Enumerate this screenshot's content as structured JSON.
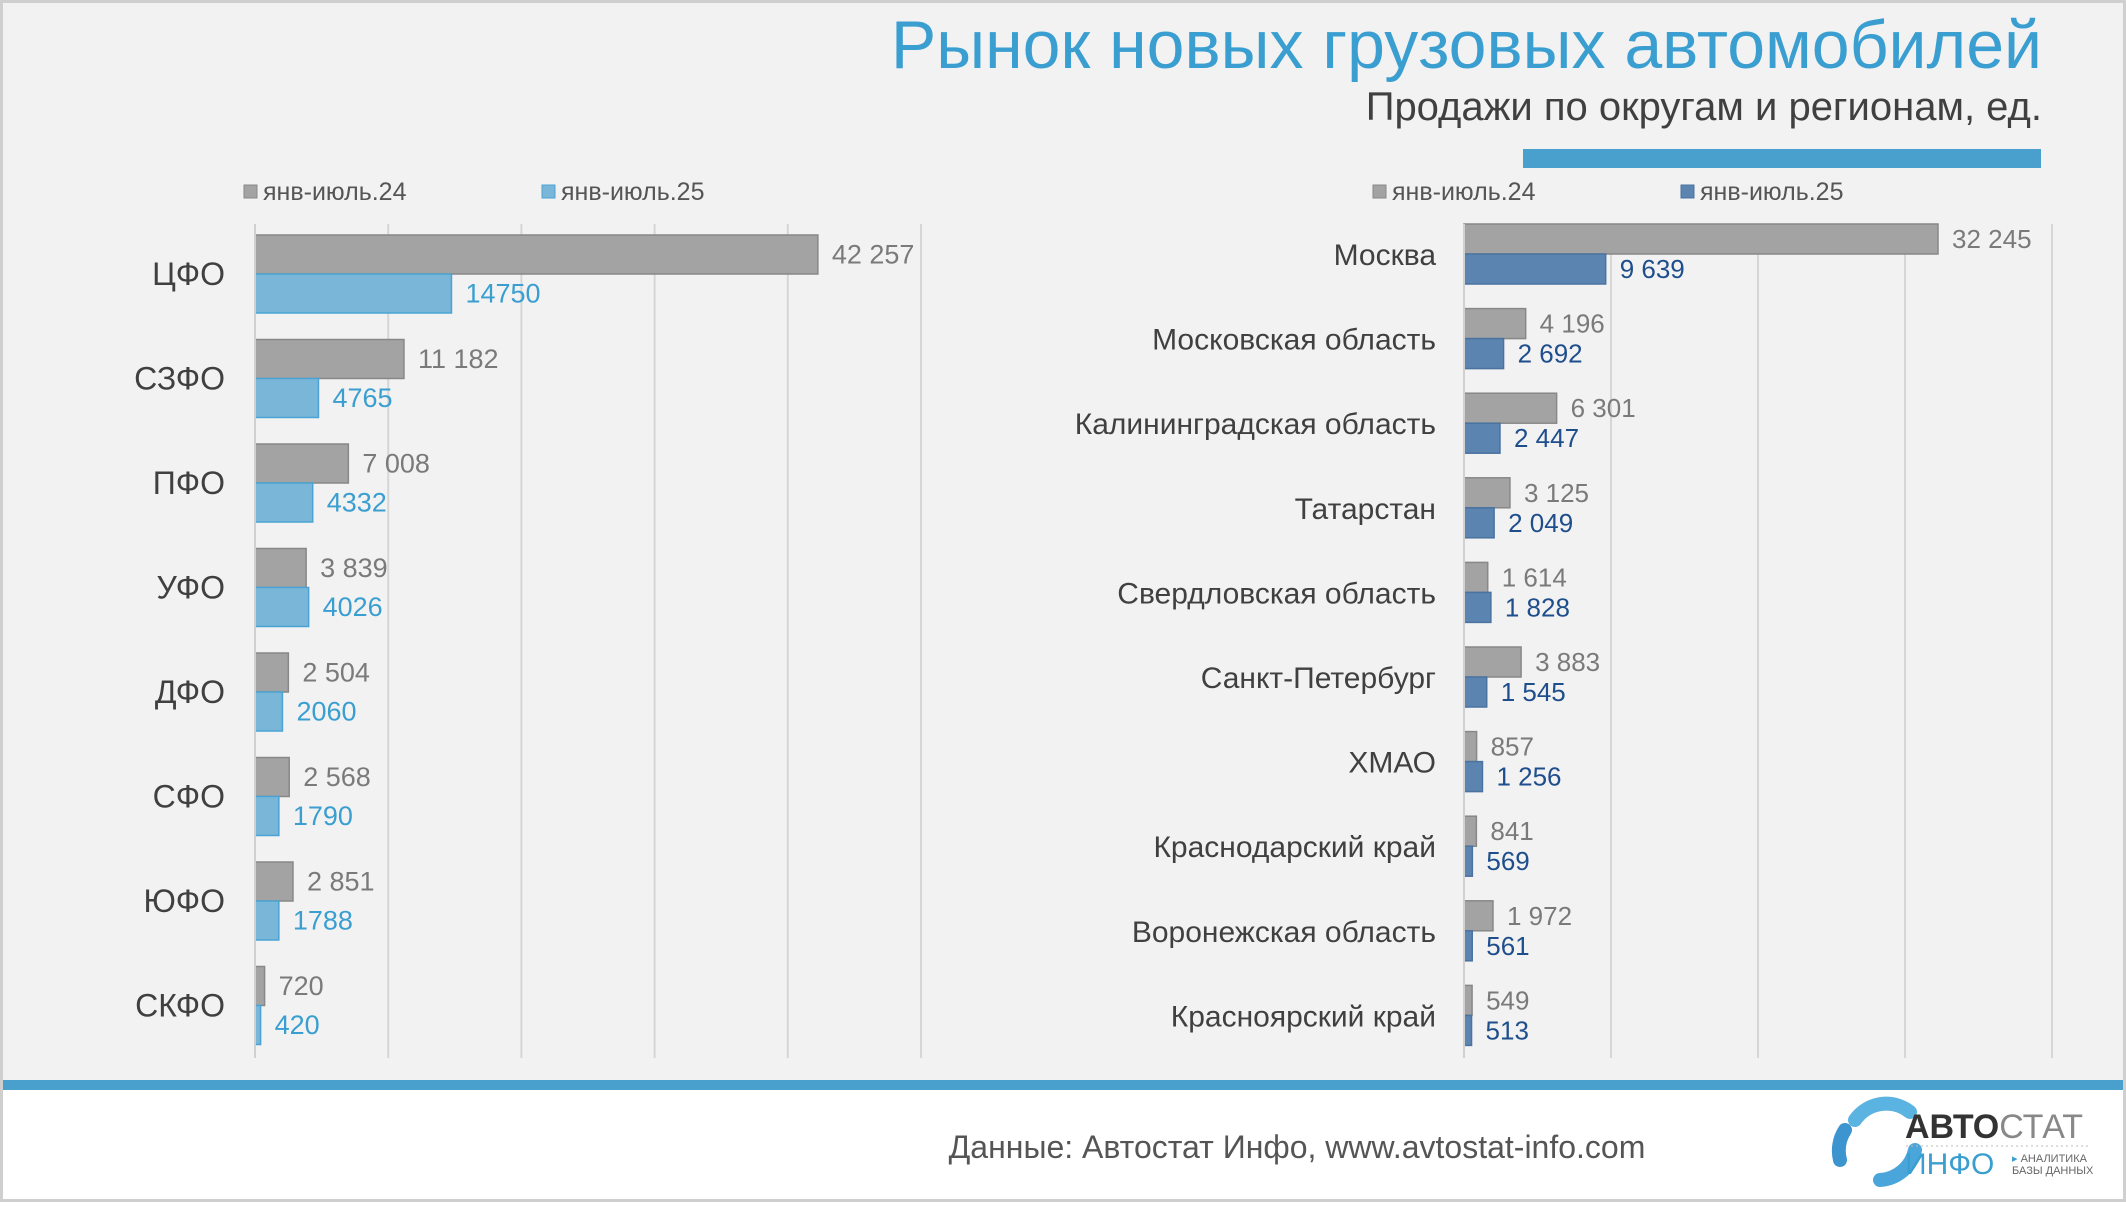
{
  "header": {
    "title": "Рынок новых грузовых автомобилей",
    "subtitle": "Продажи по округам и регионам, ед."
  },
  "footer": {
    "source": "Данные: Автостат Инфо, www.avtostat-info.com",
    "logo_text": [
      "АВТО",
      "СТАТ",
      "ИНФО",
      "АНАЛИТИКА",
      "БАЗЫ ДАННЫХ"
    ]
  },
  "colors": {
    "title": "#3a9fd0",
    "accent_band": "#4aa0cc",
    "series_2024": "#a3a3a3",
    "series_2025_left": "#7ab6d8",
    "series_2025_right": "#5b84b1",
    "label_2025_left": "#3a9fd0",
    "label_2025_right": "#1f4e8c"
  },
  "chart_data": [
    {
      "type": "bar",
      "orientation": "horizontal",
      "xlim": [
        0,
        50000
      ],
      "grid": true,
      "legend_placement": "top",
      "categories": [
        "ЦФО",
        "СЗФО",
        "ПФО",
        "УФО",
        "ДФО",
        "СФО",
        "ЮФО",
        "СКФО"
      ],
      "series": [
        {
          "name": "янв-июль.24",
          "values": [
            42257,
            11182,
            7008,
            3839,
            2504,
            2568,
            2851,
            720
          ],
          "labels": [
            "42 257",
            "11 182",
            "7 008",
            "3 839",
            "2 504",
            "2 568",
            "2 851",
            "720"
          ]
        },
        {
          "name": "янв-июль.25",
          "values": [
            14750,
            4765,
            4332,
            4026,
            2060,
            1790,
            1788,
            420
          ],
          "labels": [
            "14750",
            "4765",
            "4332",
            "4026",
            "2060",
            "1790",
            "1788",
            "420"
          ]
        }
      ]
    },
    {
      "type": "bar",
      "orientation": "horizontal",
      "xlim": [
        0,
        40000
      ],
      "grid": true,
      "legend_placement": "top",
      "categories": [
        "Москва",
        "Московская область",
        "Калининградская область",
        "Татарстан",
        "Свердловская область",
        "Санкт-Петербург",
        "ХМАО",
        "Краснодарский край",
        "Воронежская область",
        "Красноярский край"
      ],
      "series": [
        {
          "name": "янв-июль.24",
          "values": [
            32245,
            4196,
            6301,
            3125,
            1614,
            3883,
            857,
            841,
            1972,
            549
          ],
          "labels": [
            "32 245",
            "4 196",
            "6 301",
            "3 125",
            "1 614",
            "3 883",
            "857",
            "841",
            "1 972",
            "549"
          ]
        },
        {
          "name": "янв-июль.25",
          "values": [
            9639,
            2692,
            2447,
            2049,
            1828,
            1545,
            1256,
            569,
            561,
            513
          ],
          "labels": [
            "9 639",
            "2 692",
            "2 447",
            "2 049",
            "1 828",
            "1 545",
            "1 256",
            "569",
            "561",
            "513"
          ]
        }
      ]
    }
  ]
}
